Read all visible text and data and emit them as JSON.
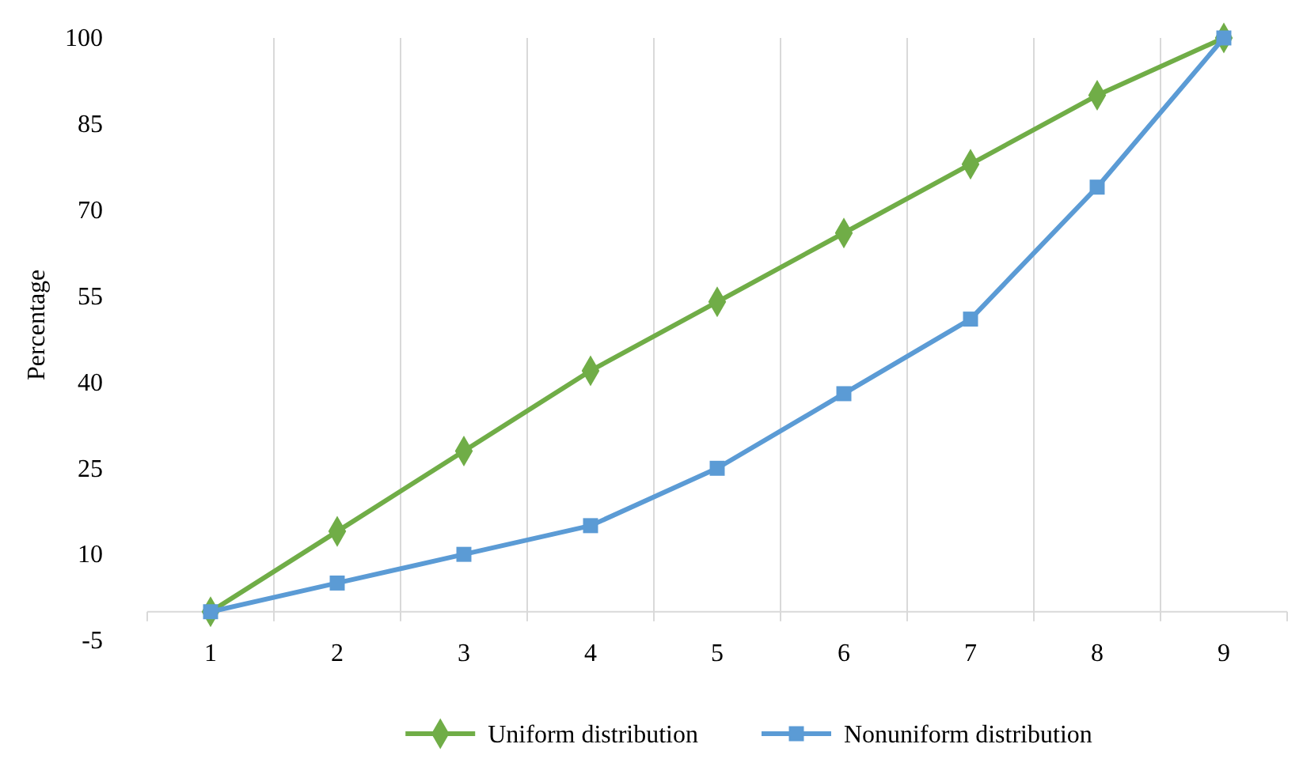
{
  "chart_data": {
    "type": "line",
    "ylabel": "Percentage",
    "categories": [
      "1",
      "2",
      "3",
      "4",
      "5",
      "6",
      "7",
      "8",
      "9"
    ],
    "ylim": [
      -5,
      100
    ],
    "yticks": [
      -5,
      10,
      25,
      40,
      55,
      70,
      85,
      100
    ],
    "grid": "x",
    "legend": "bottom",
    "line_style": "solid",
    "series": [
      {
        "name": "Uniform distribution",
        "color": "#70ad47",
        "marker": "diamond",
        "values": [
          0,
          14,
          28,
          42,
          54,
          66,
          78,
          90,
          100
        ]
      },
      {
        "name": "Nonuniform distribution",
        "color": "#5b9bd5",
        "marker": "square",
        "values": [
          0,
          5,
          10,
          15,
          25,
          38,
          51,
          74,
          100
        ]
      }
    ]
  }
}
